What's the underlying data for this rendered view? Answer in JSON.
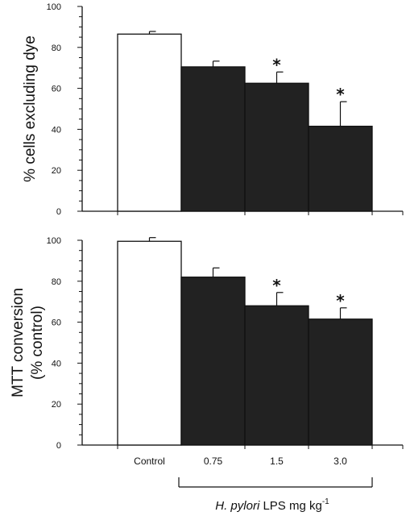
{
  "chart_data": [
    {
      "type": "bar",
      "ylabel": "% cells excluding dye",
      "ylim": [
        0,
        100
      ],
      "yticks": [
        0,
        20,
        40,
        60,
        80,
        100
      ],
      "categories": [
        "Control",
        "0.75",
        "1.5",
        "3.0"
      ],
      "values": [
        86.5,
        70.5,
        62.5,
        41.5
      ],
      "errors": [
        1.3,
        2.8,
        5.5,
        12
      ],
      "significance": [
        "",
        "",
        "*",
        "*"
      ],
      "colors": [
        "#ffffff",
        "#222222",
        "#222222",
        "#222222"
      ],
      "show_category_labels": false
    },
    {
      "type": "bar",
      "ylabel_lines": [
        "MTT conversion",
        "(% control)"
      ],
      "ylim": [
        0,
        100
      ],
      "yticks": [
        0,
        20,
        40,
        60,
        80,
        100
      ],
      "categories": [
        "Control",
        "0.75",
        "1.5",
        "3.0"
      ],
      "values": [
        99.5,
        82,
        68,
        61.5
      ],
      "errors": [
        1.8,
        4.5,
        6.5,
        5.5
      ],
      "significance": [
        "",
        "",
        "*",
        "*"
      ],
      "colors": [
        "#ffffff",
        "#222222",
        "#222222",
        "#222222"
      ],
      "show_category_labels": true
    }
  ],
  "group_label": {
    "italic": "H. pylori",
    "text": " LPS mg kg",
    "superscript": "-1"
  }
}
